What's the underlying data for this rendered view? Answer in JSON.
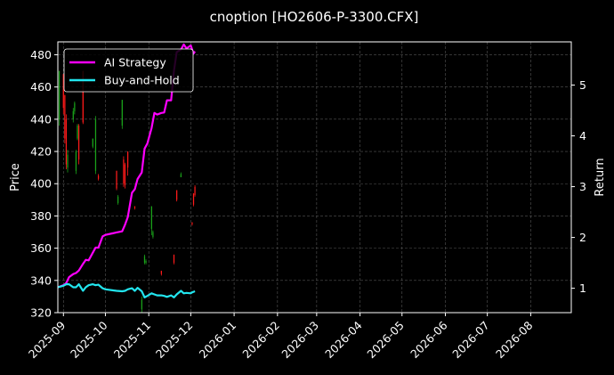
{
  "chart_data": {
    "type": "line",
    "title": "cnoption [HO2606-P-3300.CFX]",
    "ylabel_left": "Price",
    "ylabel_right": "Return",
    "ylim_left": [
      320,
      488
    ],
    "ylim_right": [
      0.52,
      5.85
    ],
    "xlim": [
      "2025-08-28",
      "2026-08-30"
    ],
    "grid": true,
    "legend_position": "upper-left",
    "y_ticks_left": [
      320,
      340,
      360,
      380,
      400,
      420,
      440,
      460,
      480
    ],
    "y_ticks_right": [
      1,
      2,
      3,
      4,
      5
    ],
    "x_ticks": [
      "2025-09",
      "2025-10",
      "2025-11",
      "2025-12",
      "2026-01",
      "2026-02",
      "2026-03",
      "2026-04",
      "2026-05",
      "2026-06",
      "2026-07",
      "2026-08"
    ],
    "colors": {
      "ai": "#ff00ff",
      "bh": "#22e5ee",
      "up": "#1aa31a",
      "down": "#ff1a1a"
    },
    "candles": [
      {
        "date": "2025-08-29",
        "open": 440,
        "close": 470,
        "high": 470,
        "low": 436
      },
      {
        "date": "2025-09-01",
        "open": 468,
        "close": 447,
        "high": 468,
        "low": 443
      },
      {
        "date": "2025-09-02",
        "open": 455,
        "close": 428,
        "high": 455,
        "low": 425
      },
      {
        "date": "2025-09-03",
        "open": 440,
        "close": 412,
        "high": 443,
        "low": 409
      },
      {
        "date": "2025-09-04",
        "open": 410,
        "close": 418,
        "high": 421,
        "low": 407
      },
      {
        "date": "2025-09-08",
        "open": 440,
        "close": 445,
        "high": 447,
        "low": 438
      },
      {
        "date": "2025-09-09",
        "open": 445,
        "close": 450,
        "high": 451,
        "low": 443
      },
      {
        "date": "2025-09-10",
        "open": 408,
        "close": 420,
        "high": 421,
        "low": 406
      },
      {
        "date": "2025-09-11",
        "open": 428,
        "close": 436,
        "high": 437,
        "low": 427
      },
      {
        "date": "2025-09-12",
        "open": 436,
        "close": 415,
        "high": 437,
        "low": 412
      },
      {
        "date": "2025-09-15",
        "open": 470,
        "close": 438,
        "high": 470,
        "low": 437
      },
      {
        "date": "2025-09-22",
        "open": 423,
        "close": 428,
        "high": 428,
        "low": 422
      },
      {
        "date": "2025-09-24",
        "open": 408,
        "close": 440,
        "high": 442,
        "low": 406
      },
      {
        "date": "2025-09-26",
        "open": 405,
        "close": 403,
        "high": 406,
        "low": 402
      },
      {
        "date": "2025-10-09",
        "open": 408,
        "close": 397,
        "high": 408,
        "low": 396
      },
      {
        "date": "2025-10-10",
        "open": 388,
        "close": 392,
        "high": 393,
        "low": 387
      },
      {
        "date": "2025-10-13",
        "open": 436,
        "close": 452,
        "high": 452,
        "low": 434
      },
      {
        "date": "2025-10-14",
        "open": 415,
        "close": 400,
        "high": 417,
        "low": 398
      },
      {
        "date": "2025-10-15",
        "open": 412,
        "close": 399,
        "high": 413,
        "low": 397
      },
      {
        "date": "2025-10-17",
        "open": 420,
        "close": 410,
        "high": 420,
        "low": 405
      },
      {
        "date": "2025-10-22",
        "open": 386,
        "close": 385,
        "high": 386,
        "low": 384
      },
      {
        "date": "2025-10-27",
        "open": 322,
        "close": 328,
        "high": 330,
        "low": 320
      },
      {
        "date": "2025-10-29",
        "open": 351,
        "close": 355,
        "high": 356,
        "low": 350
      },
      {
        "date": "2025-10-30",
        "open": 351,
        "close": 352,
        "high": 353,
        "low": 350
      },
      {
        "date": "2025-11-03",
        "open": 372,
        "close": 386,
        "high": 386,
        "low": 368
      },
      {
        "date": "2025-11-04",
        "open": 367,
        "close": 370,
        "high": 371,
        "low": 366
      },
      {
        "date": "2025-11-10",
        "open": 346,
        "close": 344,
        "high": 346,
        "low": 343
      },
      {
        "date": "2025-11-19",
        "open": 356,
        "close": 351,
        "high": 356,
        "low": 350
      },
      {
        "date": "2025-11-21",
        "open": 396,
        "close": 390,
        "high": 396,
        "low": 389
      },
      {
        "date": "2025-11-24",
        "open": 404,
        "close": 406,
        "high": 407,
        "low": 404
      },
      {
        "date": "2025-12-02",
        "open": 376,
        "close": 375,
        "high": 376,
        "low": 374
      },
      {
        "date": "2025-12-03",
        "open": 394,
        "close": 387,
        "high": 394,
        "low": 386
      },
      {
        "date": "2025-12-04",
        "open": 398,
        "close": 393,
        "high": 399,
        "low": 392
      }
    ],
    "series": [
      {
        "name": "AI Strategy",
        "x": [
          "2025-08-28",
          "2025-09-01",
          "2025-09-03",
          "2025-09-05",
          "2025-09-08",
          "2025-09-10",
          "2025-09-12",
          "2025-09-15",
          "2025-09-17",
          "2025-09-19",
          "2025-09-22",
          "2025-09-24",
          "2025-09-26",
          "2025-09-29",
          "2025-10-01",
          "2025-10-06",
          "2025-10-09",
          "2025-10-13",
          "2025-10-15",
          "2025-10-17",
          "2025-10-20",
          "2025-10-22",
          "2025-10-24",
          "2025-10-27",
          "2025-10-29",
          "2025-10-31",
          "2025-11-03",
          "2025-11-05",
          "2025-11-07",
          "2025-11-10",
          "2025-11-12",
          "2025-11-14",
          "2025-11-17",
          "2025-11-19",
          "2025-11-21",
          "2025-11-24",
          "2025-11-26",
          "2025-11-28",
          "2025-12-01",
          "2025-12-02",
          "2025-12-03",
          "2025-12-04"
        ],
        "values": [
          1.02,
          1.06,
          1.1,
          1.22,
          1.28,
          1.3,
          1.35,
          1.48,
          1.56,
          1.55,
          1.7,
          1.8,
          1.8,
          2.02,
          2.05,
          2.08,
          2.1,
          2.12,
          2.25,
          2.4,
          2.88,
          2.95,
          3.15,
          3.28,
          3.75,
          3.85,
          4.15,
          4.45,
          4.42,
          4.45,
          4.46,
          4.7,
          4.7,
          5.28,
          5.65,
          5.7,
          5.8,
          5.72,
          5.78,
          5.7,
          5.62,
          5.66
        ]
      },
      {
        "name": "Buy-and-Hold",
        "x": [
          "2025-08-28",
          "2025-09-01",
          "2025-09-03",
          "2025-09-05",
          "2025-09-08",
          "2025-09-10",
          "2025-09-12",
          "2025-09-15",
          "2025-09-17",
          "2025-09-19",
          "2025-09-22",
          "2025-09-24",
          "2025-09-26",
          "2025-09-29",
          "2025-10-01",
          "2025-10-06",
          "2025-10-09",
          "2025-10-13",
          "2025-10-15",
          "2025-10-17",
          "2025-10-20",
          "2025-10-22",
          "2025-10-24",
          "2025-10-27",
          "2025-10-29",
          "2025-10-31",
          "2025-11-03",
          "2025-11-05",
          "2025-11-07",
          "2025-11-10",
          "2025-11-12",
          "2025-11-14",
          "2025-11-17",
          "2025-11-19",
          "2025-11-21",
          "2025-11-24",
          "2025-11-26",
          "2025-11-28",
          "2025-12-01",
          "2025-12-02",
          "2025-12-03",
          "2025-12-04"
        ],
        "values": [
          1.02,
          1.05,
          1.08,
          1.08,
          1.02,
          1.02,
          1.08,
          0.95,
          1.02,
          1.06,
          1.08,
          1.06,
          1.07,
          1.0,
          0.98,
          0.96,
          0.95,
          0.94,
          0.95,
          0.98,
          1.0,
          0.95,
          1.01,
          0.94,
          0.82,
          0.85,
          0.9,
          0.88,
          0.86,
          0.86,
          0.85,
          0.83,
          0.86,
          0.82,
          0.88,
          0.95,
          0.9,
          0.91,
          0.9,
          0.92,
          0.93,
          0.94
        ]
      }
    ]
  }
}
